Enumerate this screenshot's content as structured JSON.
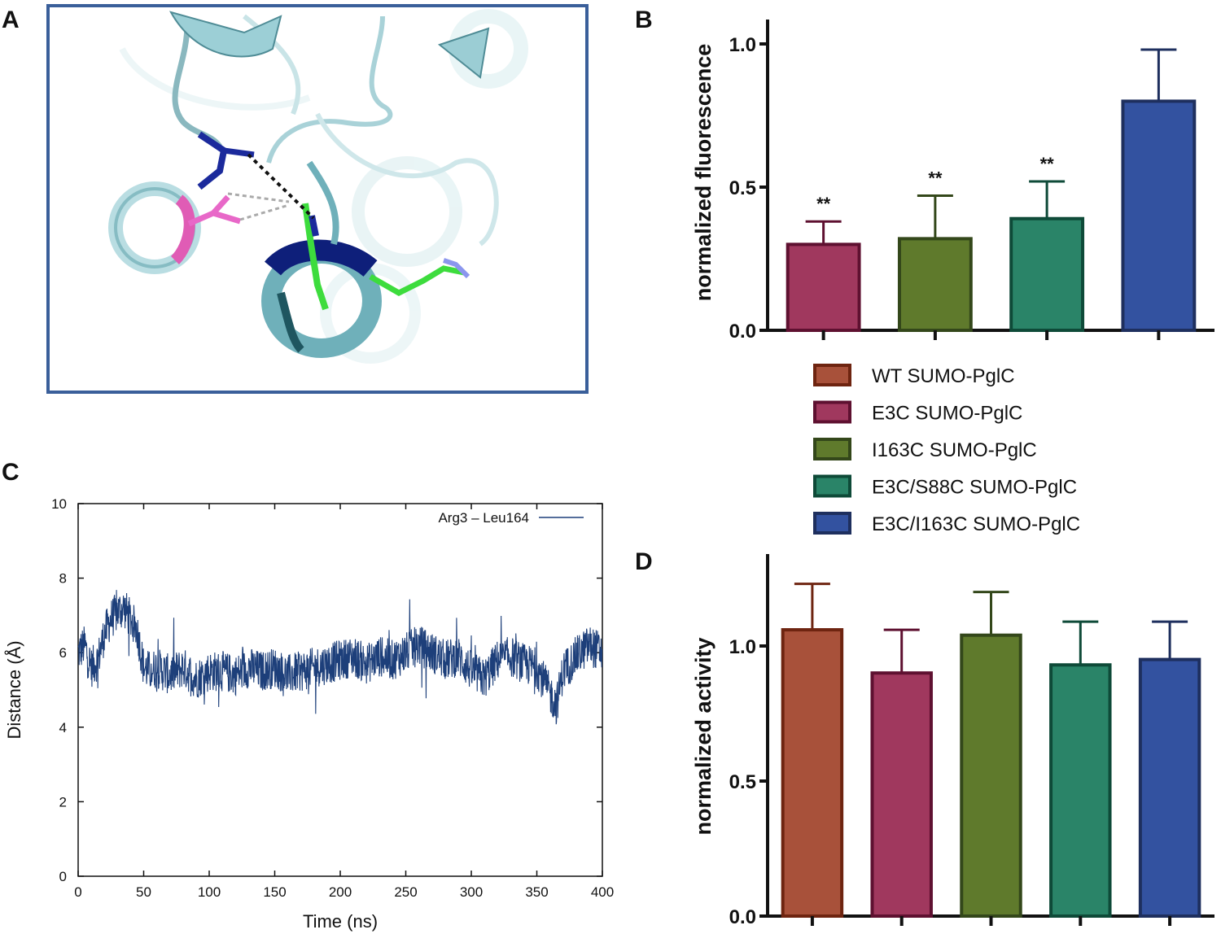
{
  "panel_labels": {
    "a": "A",
    "b": "B",
    "c": "C",
    "d": "D"
  },
  "legend": {
    "items": [
      {
        "label": "WT SUMO-PglC",
        "fill": "#a8513a",
        "stroke": "#6e2410"
      },
      {
        "label": "E3C SUMO-PglC",
        "fill": "#a0385e",
        "stroke": "#5e1030"
      },
      {
        "label": "I163C SUMO-PglC",
        "fill": "#5f7a2c",
        "stroke": "#33471a"
      },
      {
        "label": "E3C/S88C SUMO-PglC",
        "fill": "#2a8468",
        "stroke": "#0e4a38"
      },
      {
        "label": "E3C/I163C SUMO-PglC",
        "fill": "#3352a0",
        "stroke": "#1e2f5e"
      }
    ]
  },
  "chart_data": [
    {
      "panel": "B",
      "type": "bar",
      "ylabel": "normalized fluorescence",
      "ylim": [
        0,
        1.0
      ],
      "yticks": [
        "0.0",
        "0.5",
        "1.0"
      ],
      "categories": [
        "E3C SUMO-PglC",
        "I163C SUMO-PglC",
        "E3C/S88C SUMO-PglC",
        "E3C/I163C SUMO-PglC"
      ],
      "values": [
        0.3,
        0.32,
        0.39,
        0.8
      ],
      "errors": [
        0.08,
        0.15,
        0.13,
        0.18
      ],
      "annotations": [
        "**",
        "**",
        "**",
        ""
      ],
      "colors": [
        "#a0385e",
        "#5f7a2c",
        "#2a8468",
        "#3352a0"
      ],
      "edge_colors": [
        "#5e1030",
        "#33471a",
        "#0e4a38",
        "#1e2f5e"
      ]
    },
    {
      "panel": "C",
      "type": "line",
      "xlabel": "Time (ns)",
      "ylabel": "Distance (Å)",
      "xlim": [
        0,
        400
      ],
      "ylim": [
        0,
        10
      ],
      "xticks": [
        "0",
        "50",
        "100",
        "150",
        "200",
        "250",
        "300",
        "350",
        "400"
      ],
      "yticks": [
        "0",
        "2",
        "4",
        "6",
        "8",
        "10"
      ],
      "legend_position": "top-right",
      "series": [
        {
          "name": "Arg3 – Leu164",
          "color": "#1d3f7a",
          "x": [
            0,
            5,
            10,
            15,
            20,
            25,
            30,
            35,
            40,
            45,
            50,
            55,
            60,
            70,
            80,
            90,
            100,
            110,
            120,
            130,
            140,
            150,
            160,
            170,
            180,
            190,
            200,
            210,
            220,
            230,
            240,
            250,
            260,
            270,
            280,
            290,
            300,
            310,
            320,
            330,
            340,
            350,
            360,
            365,
            370,
            380,
            390,
            400
          ],
          "y": [
            6.0,
            6.2,
            5.6,
            5.8,
            6.5,
            6.9,
            7.1,
            7.2,
            6.9,
            6.6,
            5.6,
            5.5,
            5.6,
            5.4,
            5.6,
            5.3,
            5.5,
            5.5,
            5.4,
            5.6,
            5.5,
            5.6,
            5.4,
            5.5,
            5.6,
            5.7,
            5.8,
            5.9,
            5.7,
            5.9,
            5.8,
            6.0,
            6.2,
            6.0,
            5.8,
            5.9,
            5.5,
            5.3,
            5.8,
            5.9,
            5.7,
            5.6,
            4.9,
            4.6,
            5.5,
            5.9,
            6.2,
            6.0
          ]
        }
      ]
    },
    {
      "panel": "D",
      "type": "bar",
      "ylabel": "normalized activity",
      "ylim": [
        0,
        1.25
      ],
      "yticks": [
        "0.0",
        "0.5",
        "1.0"
      ],
      "categories": [
        "WT SUMO-PglC",
        "E3C SUMO-PglC",
        "I163C SUMO-PglC",
        "E3C/S88C SUMO-PglC",
        "E3C/I163C SUMO-PglC"
      ],
      "values": [
        1.06,
        0.9,
        1.04,
        0.93,
        0.95
      ],
      "errors": [
        0.17,
        0.16,
        0.16,
        0.16,
        0.14
      ],
      "colors": [
        "#a8513a",
        "#a0385e",
        "#5f7a2c",
        "#2a8468",
        "#3352a0"
      ],
      "edge_colors": [
        "#6e2410",
        "#5e1030",
        "#33471a",
        "#0e4a38",
        "#1e2f5e"
      ]
    }
  ]
}
